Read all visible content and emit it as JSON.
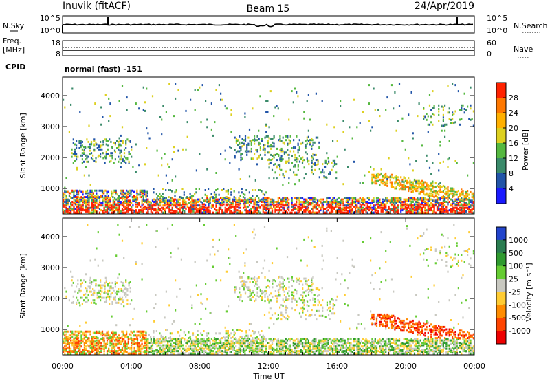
{
  "header": {
    "station": "Inuvik (fitACF)",
    "beam": "Beam 15",
    "date": "24/Apr/2019"
  },
  "noise_panel": {
    "left_label": "N.Sky",
    "right_label": "N.Search",
    "left_ticks": [
      "10^5",
      "10^0"
    ],
    "right_ticks": [
      "10^5",
      "10^0"
    ]
  },
  "freq_panel": {
    "left_label_1": "Freq.",
    "left_label_2": "[MHz]",
    "right_label": "Nave",
    "left_ticks": [
      "18",
      "8"
    ],
    "right_ticks": [
      "60",
      "0"
    ]
  },
  "cpid": {
    "label": "CPID",
    "value": "normal (fast) -151"
  },
  "chart_data": [
    {
      "type": "heatmap",
      "name": "power",
      "ylabel": "Slant Range [km]",
      "y_ticks": [
        "1000",
        "2000",
        "3000",
        "4000"
      ],
      "ylim": [
        180,
        4600
      ],
      "colorbar_label": "Power [dB]",
      "colorbar_ticks": [
        "4",
        "8",
        "12",
        "16",
        "20",
        "24",
        "28"
      ],
      "colors": [
        "#1a1aff",
        "#2255a8",
        "#3a8a6a",
        "#55b840",
        "#ddd020",
        "#ffb000",
        "#ff7800",
        "#ff2200"
      ]
    },
    {
      "type": "heatmap",
      "name": "velocity",
      "ylabel": "Slant Range [km]",
      "y_ticks": [
        "1000",
        "2000",
        "3000",
        "4000"
      ],
      "ylim": [
        180,
        4600
      ],
      "colorbar_label": "Velocity [m s⁻¹]",
      "colorbar_ticks": [
        "1000",
        "500",
        "100",
        "25",
        "-25",
        "-100",
        "-500",
        "-1000"
      ],
      "colors": [
        "#2244cc",
        "#2a7c50",
        "#2f9a2f",
        "#66cc33",
        "#c8c8c0",
        "#ffcc33",
        "#ff8c00",
        "#ff4400",
        "#ee0000"
      ]
    }
  ],
  "x_axis": {
    "label": "Time UT",
    "ticks": [
      "00:00",
      "04:00",
      "08:00",
      "12:00",
      "16:00",
      "20:00",
      "00:00"
    ]
  }
}
